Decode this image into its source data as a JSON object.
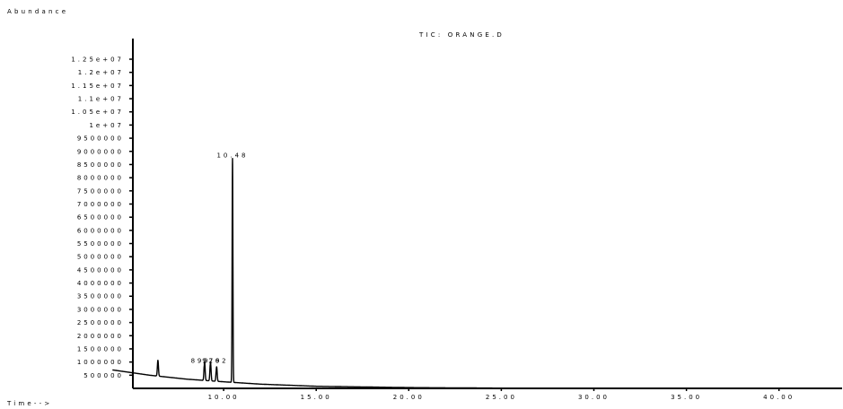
{
  "chart_data": {
    "type": "line",
    "title": "TIC: ORANGE.D",
    "ylabel": "Abundance",
    "xlabel": "Time-->",
    "xlim": [
      4.0,
      43.0
    ],
    "ylim": [
      0,
      12700000
    ],
    "y_ticks": [
      500000,
      1000000,
      1500000,
      2000000,
      2500000,
      3000000,
      3500000,
      4000000,
      4500000,
      5000000,
      5500000,
      6000000,
      6500000,
      7000000,
      7500000,
      8000000,
      8500000,
      9000000,
      9500000,
      10000000,
      10500000,
      11000000,
      11500000,
      12000000,
      12500000
    ],
    "y_tick_labels": [
      "500000",
      "1000000",
      "1500000",
      "2000000",
      "2500000",
      "3000000",
      "3500000",
      "4000000",
      "4500000",
      "5000000",
      "5500000",
      "6000000",
      "6500000",
      "7000000",
      "7500000",
      "8000000",
      "8500000",
      "9000000",
      "9500000",
      "1e+07",
      "1.05e+07",
      "1.1e+07",
      "1.15e+07",
      "1.2e+07",
      "1.25e+07"
    ],
    "x_ticks": [
      10.0,
      15.0,
      20.0,
      25.0,
      30.0,
      35.0,
      40.0
    ],
    "x_tick_labels": [
      "10.00",
      "15.00",
      "20.00",
      "25.00",
      "30.00",
      "35.00",
      "40.00"
    ],
    "baseline": {
      "x": [
        4.0,
        6.0,
        8.0,
        10.0,
        12.0,
        15.0,
        20.0,
        25.0,
        30.0,
        35.0,
        40.0,
        43.0
      ],
      "y": [
        700000,
        500000,
        350000,
        250000,
        160000,
        80000,
        30000,
        10000,
        5000,
        3000,
        2000,
        2000
      ]
    },
    "peaks": [
      {
        "rt": 6.45,
        "height": 600000
      },
      {
        "rt": 8.97,
        "height": 700000
      },
      {
        "rt": 9.29,
        "height": 700000
      },
      {
        "rt": 9.62,
        "height": 550000
      },
      {
        "rt": 10.48,
        "height": 8500000
      }
    ],
    "peak_labels": [
      {
        "text": "10.48",
        "rt": 10.48,
        "y": 8500000
      },
      {
        "text": "8.97",
        "rt": 8.9,
        "y": 700000
      },
      {
        "text": "9.29",
        "rt": 9.25,
        "y": 700000
      },
      {
        "text": "9.62",
        "rt": 9.6,
        "y": 700000
      }
    ]
  }
}
